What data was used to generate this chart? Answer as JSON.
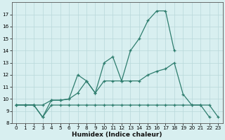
{
  "xlabel": "Humidex (Indice chaleur)",
  "x_values": [
    0,
    1,
    2,
    3,
    4,
    5,
    6,
    7,
    8,
    9,
    10,
    11,
    12,
    13,
    14,
    15,
    16,
    17,
    18,
    19,
    20,
    21,
    22,
    23
  ],
  "line_top": [
    9.5,
    9.5,
    9.5,
    8.5,
    9.9,
    9.9,
    10.0,
    12.0,
    11.5,
    10.5,
    13.0,
    13.5,
    11.5,
    14.0,
    15.0,
    16.5,
    17.3,
    17.3,
    14.0,
    null,
    null,
    null,
    null,
    null
  ],
  "line_mid": [
    9.5,
    9.5,
    9.5,
    9.5,
    9.9,
    9.9,
    10.0,
    10.5,
    11.5,
    10.5,
    11.5,
    11.5,
    11.5,
    11.5,
    11.5,
    12.0,
    12.3,
    12.5,
    13.0,
    10.4,
    9.5,
    9.5,
    8.5,
    null
  ],
  "line_bot": [
    9.5,
    9.5,
    9.5,
    8.5,
    9.5,
    9.5,
    9.5,
    9.5,
    9.5,
    9.5,
    9.5,
    9.5,
    9.5,
    9.5,
    9.5,
    9.5,
    9.5,
    9.5,
    9.5,
    9.5,
    9.5,
    9.5,
    9.5,
    8.5
  ],
  "color": "#2e7d6e",
  "bg_color": "#d8eff0",
  "grid_color": "#b8d8da",
  "ylim": [
    8,
    18
  ],
  "yticks": [
    8,
    9,
    10,
    11,
    12,
    13,
    14,
    15,
    16,
    17
  ],
  "xlim": [
    -0.5,
    23.5
  ]
}
